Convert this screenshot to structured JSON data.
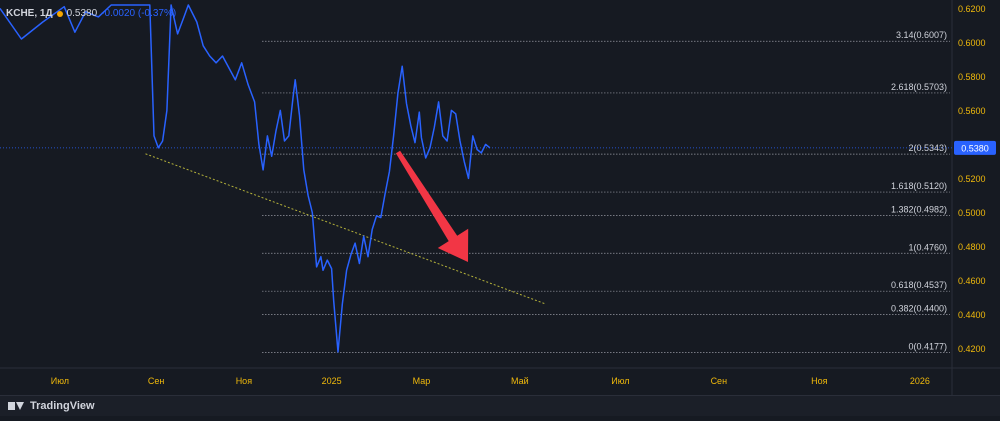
{
  "header": {
    "symbol": "KCHE, 1Д",
    "price": "0.5380",
    "change": "-0.0020 (-0.37%)"
  },
  "footer": {
    "brand": "TradingView"
  },
  "colors": {
    "background": "#161a22",
    "line": "#2962ff",
    "trend": "#b5b23a",
    "arrow": "#f23645",
    "last_price_bg": "#2962ff",
    "grid_text": "#d1d4dc",
    "month_text": "#f0b90b"
  },
  "chart_data": {
    "type": "line",
    "x_labels": [
      "Июл",
      "Сен",
      "Ноя",
      "2025",
      "Мар",
      "Май",
      "Июл",
      "Сен",
      "Ноя",
      "2026"
    ],
    "y_ticks": [
      "0.6200",
      "0.6000",
      "0.5800",
      "0.5600",
      "0.5400",
      "0.5200",
      "0.5000",
      "0.4800",
      "0.4600",
      "0.4400",
      "0.4200"
    ],
    "ylim": [
      0.415,
      0.622
    ],
    "last_price": "0.5380",
    "fib_levels": [
      {
        "label": "3.14(0.6007)",
        "value": 0.6007
      },
      {
        "label": "2.618(0.5703)",
        "value": 0.5703
      },
      {
        "label": "2(0.5343)",
        "value": 0.5343
      },
      {
        "label": "1.618(0.5120)",
        "value": 0.512
      },
      {
        "label": "1.382(0.4982)",
        "value": 0.4982
      },
      {
        "label": "1(0.4760)",
        "value": 0.476
      },
      {
        "label": "0.618(0.4537)",
        "value": 0.4537
      },
      {
        "label": "0.382(0.4400)",
        "value": 0.44
      },
      {
        "label": "0(0.4177)",
        "value": 0.4177
      }
    ],
    "series": [
      {
        "values": [
          [
            0.0,
            0.62
          ],
          [
            1.0,
            0.602
          ],
          [
            2.0,
            0.612
          ],
          [
            3.0,
            0.621
          ],
          [
            3.5,
            0.606
          ],
          [
            4.0,
            0.618
          ],
          [
            4.6,
            0.615
          ],
          [
            5.2,
            0.622
          ],
          [
            7.0,
            0.622
          ],
          [
            7.2,
            0.545
          ],
          [
            7.4,
            0.538
          ],
          [
            7.6,
            0.542
          ],
          [
            7.8,
            0.56
          ],
          [
            8.0,
            0.622
          ],
          [
            8.3,
            0.605
          ],
          [
            8.6,
            0.615
          ],
          [
            8.8,
            0.622
          ],
          [
            9.2,
            0.612
          ],
          [
            9.5,
            0.598
          ],
          [
            9.8,
            0.592
          ],
          [
            10.1,
            0.588
          ],
          [
            10.4,
            0.592
          ],
          [
            10.7,
            0.585
          ],
          [
            11.0,
            0.578
          ],
          [
            11.3,
            0.588
          ],
          [
            11.6,
            0.575
          ],
          [
            11.9,
            0.565
          ],
          [
            12.1,
            0.54
          ],
          [
            12.3,
            0.525
          ],
          [
            12.5,
            0.545
          ],
          [
            12.7,
            0.533
          ],
          [
            12.9,
            0.548
          ],
          [
            13.1,
            0.56
          ],
          [
            13.3,
            0.542
          ],
          [
            13.5,
            0.545
          ],
          [
            13.7,
            0.568
          ],
          [
            13.8,
            0.578
          ],
          [
            14.0,
            0.557
          ],
          [
            14.2,
            0.525
          ],
          [
            14.4,
            0.51
          ],
          [
            14.6,
            0.5
          ],
          [
            14.8,
            0.468
          ],
          [
            15.0,
            0.474
          ],
          [
            15.1,
            0.466
          ],
          [
            15.3,
            0.472
          ],
          [
            15.5,
            0.467
          ],
          [
            15.6,
            0.448
          ],
          [
            15.8,
            0.418
          ],
          [
            16.0,
            0.446
          ],
          [
            16.2,
            0.466
          ],
          [
            16.4,
            0.475
          ],
          [
            16.6,
            0.482
          ],
          [
            16.8,
            0.47
          ],
          [
            17.0,
            0.486
          ],
          [
            17.2,
            0.474
          ],
          [
            17.4,
            0.49
          ],
          [
            17.6,
            0.498
          ],
          [
            17.8,
            0.497
          ],
          [
            18.0,
            0.511
          ],
          [
            18.2,
            0.524
          ],
          [
            18.4,
            0.545
          ],
          [
            18.6,
            0.57
          ],
          [
            18.8,
            0.586
          ],
          [
            19.0,
            0.564
          ],
          [
            19.2,
            0.551
          ],
          [
            19.4,
            0.541
          ],
          [
            19.6,
            0.559
          ],
          [
            19.7,
            0.544
          ],
          [
            19.9,
            0.532
          ],
          [
            20.1,
            0.538
          ],
          [
            20.3,
            0.55
          ],
          [
            20.5,
            0.565
          ],
          [
            20.7,
            0.545
          ],
          [
            20.9,
            0.542
          ],
          [
            21.1,
            0.56
          ],
          [
            21.3,
            0.558
          ],
          [
            21.5,
            0.542
          ],
          [
            21.7,
            0.53
          ],
          [
            21.9,
            0.52
          ],
          [
            22.1,
            0.545
          ],
          [
            22.3,
            0.537
          ],
          [
            22.5,
            0.535
          ],
          [
            22.7,
            0.54
          ],
          [
            22.9,
            0.538
          ]
        ]
      }
    ],
    "trend_line": [
      [
        6.8,
        0.5345
      ],
      [
        25.5,
        0.4462
      ]
    ],
    "xlim": [
      0,
      44.5
    ]
  }
}
